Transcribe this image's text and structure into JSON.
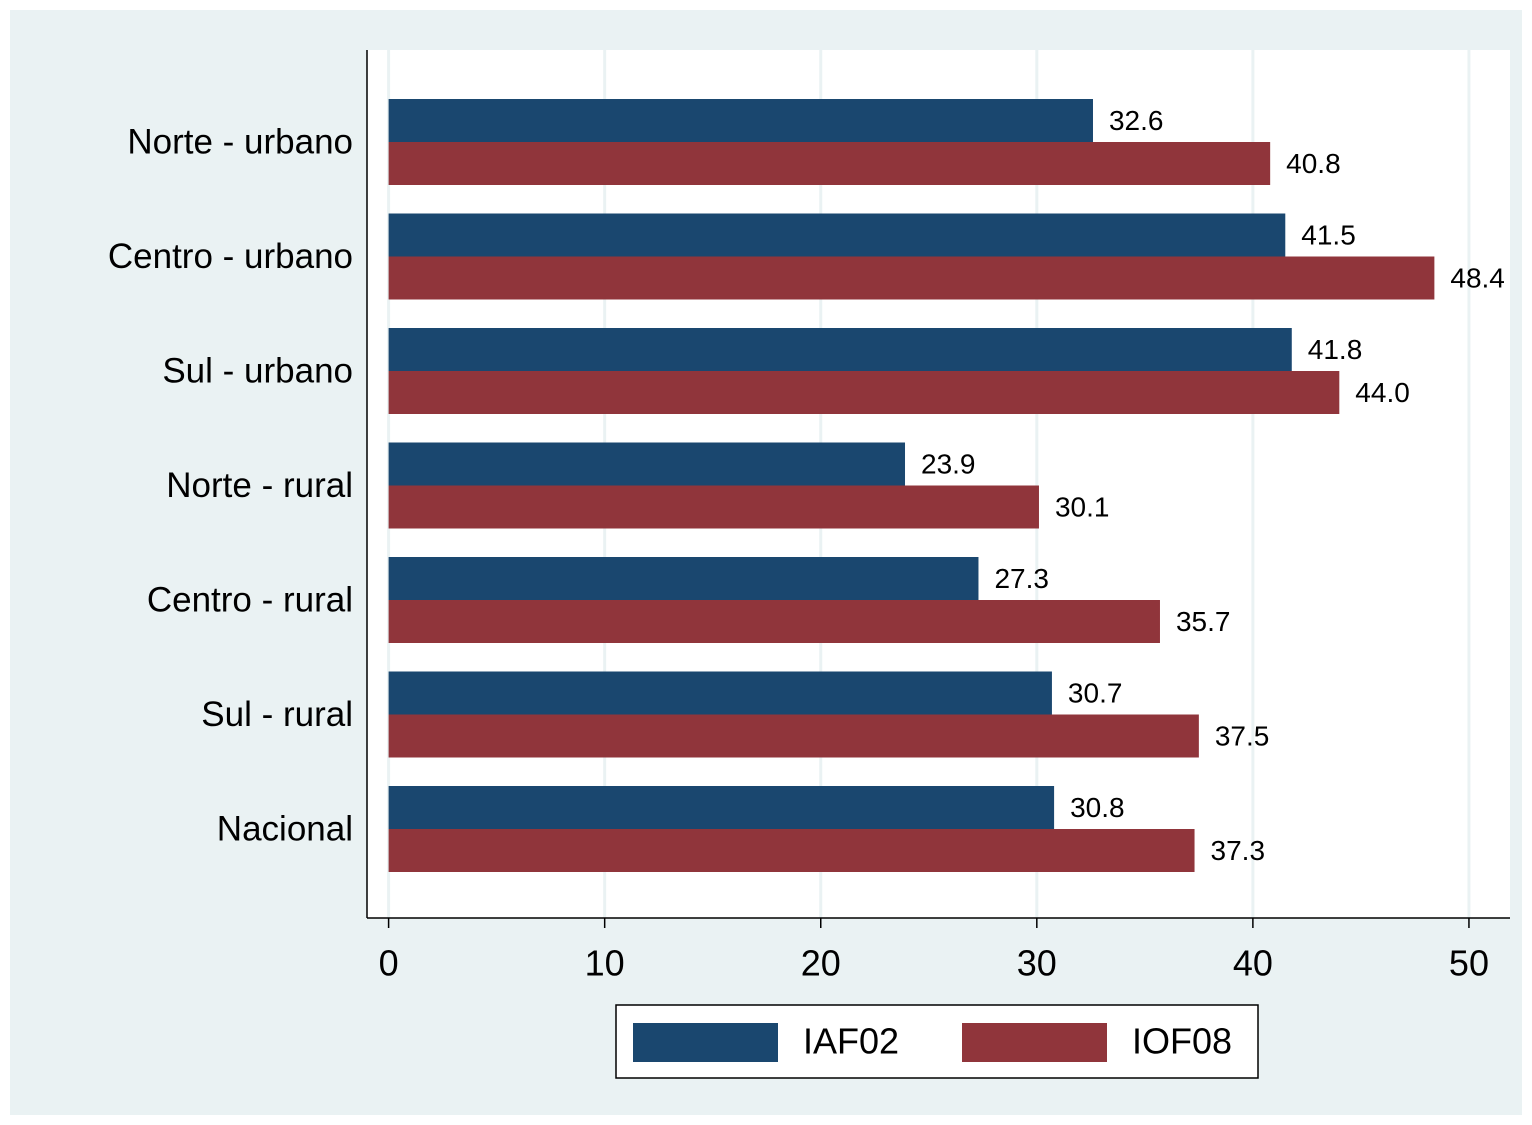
{
  "chart_data": {
    "type": "hbar",
    "categories": [
      "Norte - urbano",
      "Centro - urbano",
      "Sul - urbano",
      "Norte - rural",
      "Centro - rural",
      "Sul - rural",
      "Nacional"
    ],
    "series": [
      {
        "name": "IAF02",
        "color": "#1a476f",
        "values": [
          32.6,
          41.5,
          41.8,
          23.9,
          27.3,
          30.7,
          30.8
        ],
        "value_labels": [
          "32.6",
          "41.5",
          "41.8",
          "23.9",
          "27.3",
          "30.7",
          "30.8"
        ]
      },
      {
        "name": "IOF08",
        "color": "#90353b",
        "values": [
          40.8,
          48.4,
          44.0,
          30.1,
          35.7,
          37.5,
          37.3
        ],
        "value_labels": [
          "40.8",
          "48.4",
          "44.0",
          "30.1",
          "35.7",
          "37.5",
          "37.3"
        ]
      }
    ],
    "xlim": [
      -1,
      51.9
    ],
    "xticks": [
      0,
      10,
      20,
      30,
      40,
      50
    ],
    "grid": true,
    "legend": "bottom"
  }
}
